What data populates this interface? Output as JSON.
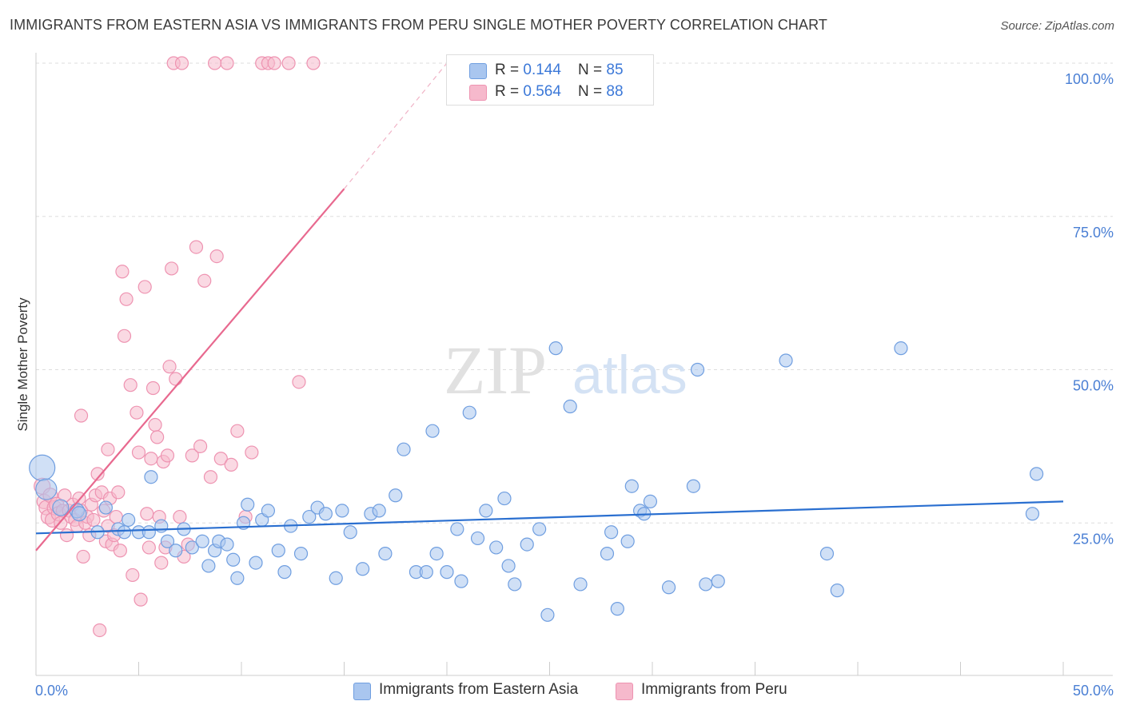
{
  "header": {
    "title": "IMMIGRANTS FROM EASTERN ASIA VS IMMIGRANTS FROM PERU SINGLE MOTHER POVERTY CORRELATION CHART",
    "source": "Source: ZipAtlas.com"
  },
  "watermark": {
    "zip": "ZIP",
    "atlas": "atlas"
  },
  "legend": {
    "rows": [
      {
        "r_label": "R = ",
        "r_value": "0.144",
        "n_label": "N = ",
        "n_value": "85"
      },
      {
        "r_label": "R = ",
        "r_value": "0.564",
        "n_label": "N = ",
        "n_value": "88"
      }
    ]
  },
  "bottom_legend": {
    "series_a": "Immigrants from Eastern Asia",
    "series_b": "Immigrants from Peru"
  },
  "colors": {
    "blue_fill": "#a9c6ef",
    "blue_stroke": "#6f9ee0",
    "blue_line": "#2a6fd0",
    "pink_fill": "#f6b9cc",
    "pink_stroke": "#ee93b1",
    "pink_line": "#e8698f",
    "tick_label": "#4a7fd4",
    "grid": "#dddddd"
  },
  "chart_data": {
    "type": "scatter",
    "title": "IMMIGRANTS FROM EASTERN ASIA VS IMMIGRANTS FROM PERU SINGLE MOTHER POVERTY CORRELATION CHART",
    "xlabel": "",
    "ylabel": "Single Mother Poverty",
    "xlim": [
      0,
      50
    ],
    "ylim": [
      0,
      100
    ],
    "x_tick_labels": [
      "0.0%",
      "50.0%"
    ],
    "y_tick_labels": [
      "100.0%",
      "75.0%",
      "50.0%",
      "25.0%"
    ],
    "y_ticks": [
      100,
      75,
      50,
      25
    ],
    "grid": true,
    "legend_placement": "top-center",
    "series": [
      {
        "name": "Immigrants from Eastern Asia",
        "r": 0.144,
        "n": 85,
        "trend": {
          "x0": 0,
          "y0": 23.3,
          "x1": 50,
          "y1": 28.5
        },
        "points": [
          [
            0.3,
            34.0,
            16
          ],
          [
            0.5,
            30.5,
            13
          ],
          [
            1.2,
            27.5,
            10
          ],
          [
            2.0,
            27.0,
            9
          ],
          [
            2.1,
            26.5,
            9
          ],
          [
            3.0,
            23.5,
            8
          ],
          [
            3.4,
            27.5,
            8
          ],
          [
            4.0,
            24.0,
            8
          ],
          [
            4.3,
            23.5,
            8
          ],
          [
            4.5,
            25.5,
            8
          ],
          [
            5.0,
            23.5,
            8
          ],
          [
            5.5,
            23.5,
            8
          ],
          [
            5.6,
            32.5,
            8
          ],
          [
            6.1,
            24.5,
            8
          ],
          [
            6.4,
            22.0,
            8
          ],
          [
            6.8,
            20.5,
            8
          ],
          [
            7.2,
            24.0,
            8
          ],
          [
            7.6,
            21.0,
            8
          ],
          [
            8.1,
            22.0,
            8
          ],
          [
            8.4,
            18.0,
            8
          ],
          [
            8.7,
            20.5,
            8
          ],
          [
            8.9,
            22.0,
            8
          ],
          [
            9.3,
            21.5,
            8
          ],
          [
            9.6,
            19.0,
            8
          ],
          [
            9.8,
            16.0,
            8
          ],
          [
            10.1,
            25.0,
            8
          ],
          [
            10.3,
            28.0,
            8
          ],
          [
            10.7,
            18.5,
            8
          ],
          [
            11.0,
            25.5,
            8
          ],
          [
            11.3,
            27.0,
            8
          ],
          [
            11.8,
            20.5,
            8
          ],
          [
            12.1,
            17.0,
            8
          ],
          [
            12.4,
            24.5,
            8
          ],
          [
            12.9,
            20.0,
            8
          ],
          [
            13.3,
            26.0,
            8
          ],
          [
            13.7,
            27.5,
            8
          ],
          [
            14.1,
            26.5,
            8
          ],
          [
            14.6,
            16.0,
            8
          ],
          [
            14.9,
            27.0,
            8
          ],
          [
            15.3,
            23.5,
            8
          ],
          [
            15.9,
            17.5,
            8
          ],
          [
            16.3,
            26.5,
            8
          ],
          [
            16.7,
            27.0,
            8
          ],
          [
            17.0,
            20.0,
            8
          ],
          [
            17.5,
            29.5,
            8
          ],
          [
            17.9,
            37.0,
            8
          ],
          [
            18.5,
            17.0,
            8
          ],
          [
            19.0,
            17.0,
            8
          ],
          [
            19.3,
            40.0,
            8
          ],
          [
            19.5,
            20.0,
            8
          ],
          [
            20.0,
            17.0,
            8
          ],
          [
            20.5,
            24.0,
            8
          ],
          [
            20.7,
            15.5,
            8
          ],
          [
            21.1,
            43.0,
            8
          ],
          [
            21.5,
            22.5,
            8
          ],
          [
            21.9,
            27.0,
            8
          ],
          [
            22.4,
            21.0,
            8
          ],
          [
            22.8,
            29.0,
            8
          ],
          [
            23.0,
            18.0,
            8
          ],
          [
            23.3,
            15.0,
            8
          ],
          [
            23.9,
            21.5,
            8
          ],
          [
            24.5,
            24.0,
            8
          ],
          [
            24.9,
            10.0,
            8
          ],
          [
            25.3,
            53.5,
            8
          ],
          [
            26.0,
            44.0,
            8
          ],
          [
            26.5,
            15.0,
            8
          ],
          [
            27.8,
            20.0,
            8
          ],
          [
            28.0,
            23.5,
            8
          ],
          [
            28.3,
            11.0,
            8
          ],
          [
            28.8,
            22.0,
            8
          ],
          [
            29.0,
            31.0,
            8
          ],
          [
            29.4,
            27.0,
            8
          ],
          [
            29.6,
            26.5,
            8
          ],
          [
            29.9,
            28.5,
            8
          ],
          [
            30.8,
            14.5,
            8
          ],
          [
            32.0,
            31.0,
            8
          ],
          [
            32.2,
            50.0,
            8
          ],
          [
            32.6,
            15.0,
            8
          ],
          [
            33.2,
            15.5,
            8
          ],
          [
            36.5,
            51.5,
            8
          ],
          [
            38.5,
            20.0,
            8
          ],
          [
            39.0,
            14.0,
            8
          ],
          [
            42.1,
            53.5,
            8
          ],
          [
            48.5,
            26.5,
            8
          ],
          [
            48.7,
            33.0,
            8
          ]
        ]
      },
      {
        "name": "Immigrants from Peru",
        "r": 0.564,
        "n": 88,
        "trend": {
          "x0": 0,
          "y0": 20.5,
          "x1": 15,
          "y1": 79.5,
          "dash_x1": 20,
          "dash_y1": 100
        },
        "points": [
          [
            0.3,
            31.0,
            10
          ],
          [
            0.4,
            28.5,
            9
          ],
          [
            0.5,
            27.5,
            9
          ],
          [
            0.6,
            26.0,
            9
          ],
          [
            0.7,
            29.5,
            9
          ],
          [
            0.8,
            25.5,
            9
          ],
          [
            0.9,
            27.5,
            9
          ],
          [
            1.0,
            28.0,
            9
          ],
          [
            1.1,
            26.5,
            9
          ],
          [
            1.2,
            25.0,
            8
          ],
          [
            1.3,
            27.0,
            8
          ],
          [
            1.4,
            29.5,
            8
          ],
          [
            1.5,
            23.0,
            8
          ],
          [
            1.6,
            27.0,
            8
          ],
          [
            1.7,
            26.0,
            8
          ],
          [
            1.8,
            28.0,
            8
          ],
          [
            1.9,
            25.5,
            8
          ],
          [
            2.0,
            24.5,
            8
          ],
          [
            2.1,
            29.0,
            8
          ],
          [
            2.2,
            27.0,
            8
          ],
          [
            2.3,
            19.5,
            8
          ],
          [
            2.4,
            25.0,
            8
          ],
          [
            2.5,
            26.0,
            8
          ],
          [
            2.6,
            23.0,
            8
          ],
          [
            2.7,
            28.0,
            8
          ],
          [
            2.8,
            25.5,
            8
          ],
          [
            2.9,
            29.5,
            8
          ],
          [
            3.0,
            33.0,
            8
          ],
          [
            3.1,
            7.5,
            8
          ],
          [
            3.2,
            30.0,
            8
          ],
          [
            3.3,
            27.0,
            8
          ],
          [
            3.4,
            22.0,
            8
          ],
          [
            3.5,
            24.5,
            8
          ],
          [
            3.6,
            29.0,
            8
          ],
          [
            3.7,
            21.5,
            8
          ],
          [
            3.8,
            23.0,
            8
          ],
          [
            3.9,
            26.0,
            8
          ],
          [
            4.0,
            30.0,
            8
          ],
          [
            4.1,
            20.5,
            8
          ],
          [
            4.2,
            66.0,
            8
          ],
          [
            4.4,
            61.5,
            8
          ],
          [
            4.6,
            47.5,
            8
          ],
          [
            4.7,
            16.5,
            8
          ],
          [
            4.9,
            43.0,
            8
          ],
          [
            5.0,
            36.5,
            8
          ],
          [
            5.1,
            12.5,
            8
          ],
          [
            5.3,
            63.5,
            8
          ],
          [
            5.4,
            26.5,
            8
          ],
          [
            5.5,
            21.0,
            8
          ],
          [
            5.6,
            35.5,
            8
          ],
          [
            5.7,
            47.0,
            8
          ],
          [
            5.8,
            41.0,
            8
          ],
          [
            5.9,
            39.0,
            8
          ],
          [
            6.0,
            26.0,
            8
          ],
          [
            6.1,
            18.5,
            8
          ],
          [
            6.2,
            35.0,
            8
          ],
          [
            6.3,
            21.0,
            8
          ],
          [
            6.4,
            36.0,
            8
          ],
          [
            6.5,
            50.5,
            8
          ],
          [
            6.6,
            66.5,
            8
          ],
          [
            6.8,
            48.5,
            8
          ],
          [
            7.0,
            26.0,
            8
          ],
          [
            7.2,
            19.5,
            8
          ],
          [
            7.4,
            21.5,
            8
          ],
          [
            7.6,
            36.0,
            8
          ],
          [
            7.8,
            70.0,
            8
          ],
          [
            8.0,
            37.5,
            8
          ],
          [
            8.2,
            64.5,
            8
          ],
          [
            8.5,
            32.5,
            8
          ],
          [
            8.7,
            100.0,
            8
          ],
          [
            8.8,
            68.5,
            8
          ],
          [
            9.0,
            35.5,
            8
          ],
          [
            9.3,
            100.0,
            8
          ],
          [
            9.5,
            34.5,
            8
          ],
          [
            9.8,
            40.0,
            8
          ],
          [
            10.2,
            26.0,
            8
          ],
          [
            10.5,
            36.5,
            8
          ],
          [
            11.0,
            100.0,
            8
          ],
          [
            11.3,
            100.0,
            8
          ],
          [
            11.6,
            100.0,
            8
          ],
          [
            12.3,
            100.0,
            8
          ],
          [
            12.8,
            48.0,
            8
          ],
          [
            13.5,
            100.0,
            8
          ],
          [
            6.7,
            100.0,
            8
          ],
          [
            7.1,
            100.0,
            8
          ],
          [
            2.2,
            42.5,
            8
          ],
          [
            4.3,
            55.5,
            8
          ],
          [
            3.5,
            37.0,
            8
          ]
        ]
      }
    ]
  }
}
